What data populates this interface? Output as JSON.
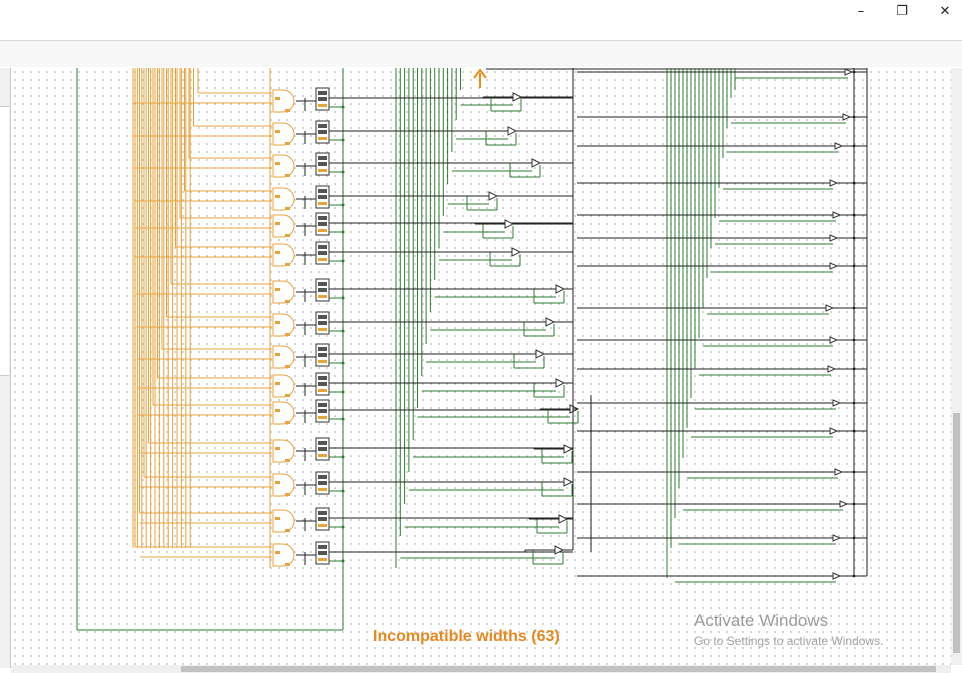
{
  "window": {
    "controls": {
      "minimize_glyph": "–",
      "maximize_glyph": "❐",
      "close_glyph": "✕"
    }
  },
  "canvas": {
    "error_message": "Incompatible widths (63)",
    "colors": {
      "orange_wire": "#e8a33c",
      "green_wire": "#2e7d32",
      "black_wire": "#222222",
      "error_text": "#e8871e",
      "arrow": "#f08a1c"
    },
    "gate_rows": 15,
    "buffer_rows": 15,
    "output_rows": 17
  },
  "watermark": {
    "title": "Activate Windows",
    "subtitle": "Go to Settings to activate Windows."
  }
}
